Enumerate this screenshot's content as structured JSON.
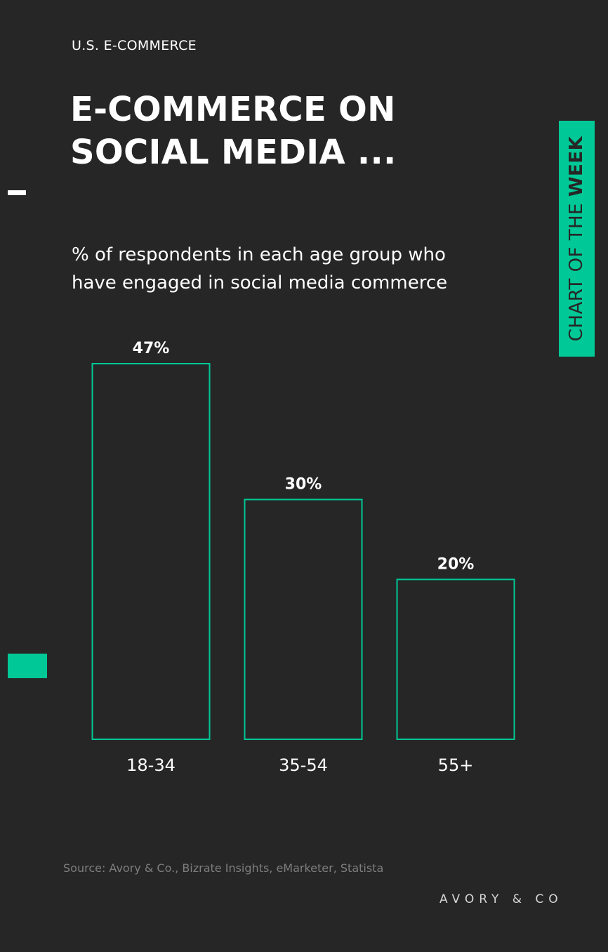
{
  "header": {
    "eyebrow": "U.S. E-COMMERCE",
    "title": "E-COMMERCE ON SOCIAL MEDIA ..."
  },
  "side_tab": {
    "text_regular": "CHART OF THE ",
    "text_bold": "WEEK"
  },
  "colors": {
    "accent": "#00c896",
    "background": "#262626",
    "text": "#ffffff",
    "muted": "#7e7e7e"
  },
  "chart_data": {
    "type": "bar",
    "subtitle": "% of respondents in each age group who have engaged in social media commerce",
    "categories": [
      "18-34",
      "35-54",
      "55+"
    ],
    "values": [
      47,
      30,
      20
    ],
    "value_labels": [
      "47%",
      "30%",
      "20%"
    ],
    "unit": "%",
    "ylim": [
      0,
      47
    ],
    "grid": false,
    "style": "outlined bars"
  },
  "footer": {
    "source": "Source: Avory & Co., Bizrate Insights, eMarketer, Statista",
    "brand": "AVORY & CO"
  }
}
